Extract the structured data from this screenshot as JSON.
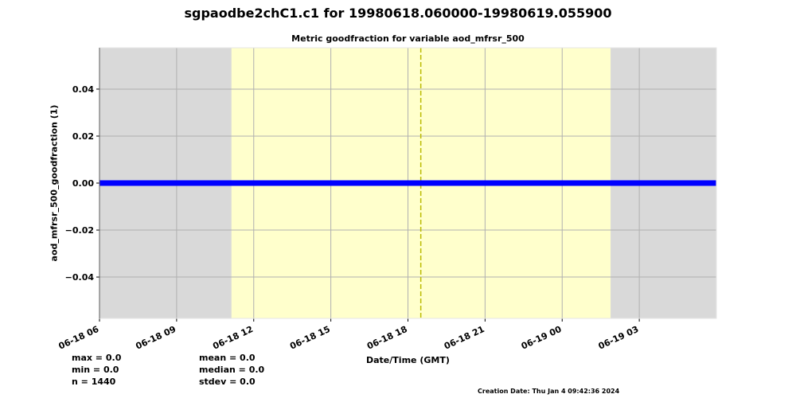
{
  "title": "sgpaodbe2chC1.c1 for 19980618.060000-19980619.055900",
  "creation_date": "Creation Date: Thu Jan  4 09:42:36 2024",
  "stats_left": [
    "max = 0.0",
    "min = 0.0",
    "n = 1440"
  ],
  "stats_right": [
    "mean = 0.0",
    "median = 0.0",
    "stdev = 0.0"
  ],
  "chart_data": {
    "type": "line",
    "title": "Metric goodfraction for variable aod_mfrsr_500",
    "xlabel": "Date/Time (GMT)",
    "ylabel": "aod_mfrsr_500_goodfraction (1)",
    "xlim": [
      "1998-06-18T06:00",
      "1998-06-19T06:00"
    ],
    "ylim": [
      -0.0576,
      0.0576
    ],
    "grid": true,
    "x_ticks": [
      {
        "t": "1998-06-18T06:00",
        "label": "06-18 06"
      },
      {
        "t": "1998-06-18T09:00",
        "label": "06-18 09"
      },
      {
        "t": "1998-06-18T12:00",
        "label": "06-18 12"
      },
      {
        "t": "1998-06-18T15:00",
        "label": "06-18 15"
      },
      {
        "t": "1998-06-18T18:00",
        "label": "06-18 18"
      },
      {
        "t": "1998-06-18T21:00",
        "label": "06-18 21"
      },
      {
        "t": "1998-06-19T00:00",
        "label": "06-19 00"
      },
      {
        "t": "1998-06-19T03:00",
        "label": "06-19 03"
      }
    ],
    "y_ticks": [
      {
        "v": 0.04,
        "label": "0.04"
      },
      {
        "v": 0.02,
        "label": "0.02"
      },
      {
        "v": 0.0,
        "label": "0.00"
      },
      {
        "v": -0.02,
        "label": "−0.02"
      },
      {
        "v": -0.04,
        "label": "−0.04"
      }
    ],
    "background_color": "#d9d9d9",
    "highlight_span": {
      "start": "1998-06-18T11:08",
      "end": "1998-06-19T01:53",
      "color": "#ffffcc"
    },
    "vertical_marker": {
      "t": "1998-06-18T18:30",
      "color": "#bbbb00",
      "style": "dashed"
    },
    "series": [
      {
        "color": "#0000ff",
        "x": [
          "1998-06-18T06:00",
          "1998-06-19T05:59"
        ],
        "y": [
          0.0,
          0.0
        ]
      }
    ]
  }
}
